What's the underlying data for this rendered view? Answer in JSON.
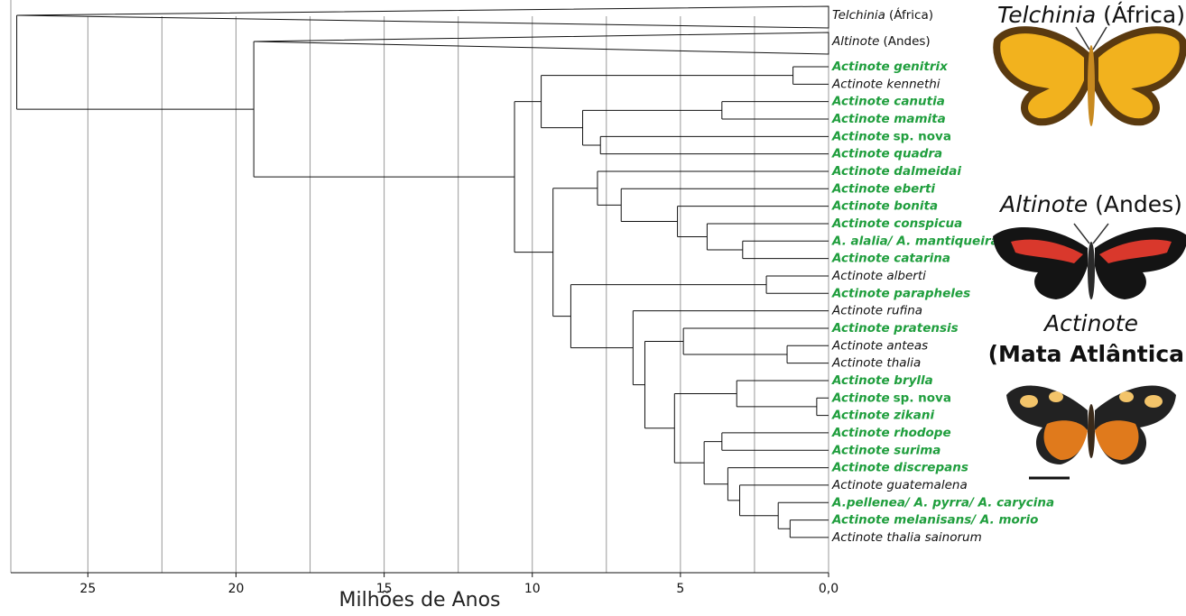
{
  "tree": {
    "axis": {
      "label": "Milhões de Anos",
      "xlim": [
        27.6,
        0
      ],
      "ticks": [
        25,
        20,
        15,
        10,
        5,
        {
          "value": 0,
          "label": "0,0"
        }
      ],
      "gridlines": [
        25,
        22.5,
        20,
        17.5,
        15,
        12.5,
        10,
        7.5,
        5,
        2.5
      ]
    },
    "root": {
      "age": 27.4,
      "children": [
        {
          "name": "Telchinia",
          "note": "(África)",
          "highlight": false,
          "collapsed": true
        },
        {
          "age": 19.4,
          "children": [
            {
              "name": "Altinote",
              "note": "(Andes)",
              "highlight": false,
              "collapsed": true
            },
            {
              "age": 10.6,
              "children": [
                {
                  "age": 9.7,
                  "children": [
                    {
                      "age": 1.2,
                      "children": [
                        {
                          "name": "Actinote genitrix",
                          "highlight": true
                        },
                        {
                          "name": "Actinote kennethi",
                          "highlight": false
                        }
                      ]
                    },
                    {
                      "age": 8.3,
                      "children": [
                        {
                          "age": 3.6,
                          "children": [
                            {
                              "name": "Actinote canutia",
                              "highlight": true
                            },
                            {
                              "name": "Actinote mamita",
                              "highlight": true
                            }
                          ]
                        },
                        {
                          "age": 7.7,
                          "children": [
                            {
                              "name": "Actinote",
                              "note": "sp. nova",
                              "highlight": true
                            },
                            {
                              "name": "Actinote quadra",
                              "highlight": true
                            }
                          ]
                        }
                      ]
                    }
                  ]
                },
                {
                  "age": 9.3,
                  "children": [
                    {
                      "age": 7.8,
                      "children": [
                        {
                          "name": "Actinote dalmeidai",
                          "highlight": true
                        },
                        {
                          "age": 7.0,
                          "children": [
                            {
                              "name": "Actinote eberti",
                              "highlight": true
                            },
                            {
                              "age": 5.1,
                              "children": [
                                {
                                  "name": "Actinote bonita",
                                  "highlight": true
                                },
                                {
                                  "age": 4.1,
                                  "children": [
                                    {
                                      "name": "Actinote conspicua",
                                      "highlight": true
                                    },
                                    {
                                      "age": 2.9,
                                      "children": [
                                        {
                                          "name": "A. alalia/ A. mantiqueira",
                                          "highlight": true
                                        },
                                        {
                                          "name": "Actinote catarina",
                                          "highlight": true
                                        }
                                      ]
                                    }
                                  ]
                                }
                              ]
                            }
                          ]
                        }
                      ]
                    },
                    {
                      "age": 8.7,
                      "children": [
                        {
                          "age": 2.1,
                          "children": [
                            {
                              "name": "Actinote alberti",
                              "highlight": false
                            },
                            {
                              "name": "Actinote parapheles",
                              "highlight": true
                            }
                          ]
                        },
                        {
                          "age": 6.6,
                          "children": [
                            {
                              "name": "Actinote rufina",
                              "highlight": false
                            },
                            {
                              "age": 6.2,
                              "children": [
                                {
                                  "age": 4.9,
                                  "children": [
                                    {
                                      "name": "Actinote pratensis",
                                      "highlight": true
                                    },
                                    {
                                      "age": 1.4,
                                      "children": [
                                        {
                                          "name": "Actinote anteas",
                                          "highlight": false
                                        },
                                        {
                                          "name": "Actinote thalia",
                                          "highlight": false
                                        }
                                      ]
                                    }
                                  ]
                                },
                                {
                                  "age": 5.2,
                                  "children": [
                                    {
                                      "age": 3.1,
                                      "children": [
                                        {
                                          "name": "Actinote brylla",
                                          "highlight": true
                                        },
                                        {
                                          "age": 0.4,
                                          "children": [
                                            {
                                              "name": "Actinote",
                                              "note": "sp. nova",
                                              "highlight": true
                                            },
                                            {
                                              "name": "Actinote zikani",
                                              "highlight": true
                                            }
                                          ]
                                        }
                                      ]
                                    },
                                    {
                                      "age": 4.2,
                                      "children": [
                                        {
                                          "age": 3.6,
                                          "children": [
                                            {
                                              "name": "Actinote rhodope",
                                              "highlight": true
                                            },
                                            {
                                              "name": "Actinote surima",
                                              "highlight": true
                                            }
                                          ]
                                        },
                                        {
                                          "age": 3.4,
                                          "children": [
                                            {
                                              "name": "Actinote discrepans",
                                              "highlight": true
                                            },
                                            {
                                              "age": 3.0,
                                              "children": [
                                                {
                                                  "name": "Actinote guatemalena",
                                                  "highlight": false
                                                },
                                                {
                                                  "age": 1.7,
                                                  "children": [
                                                    {
                                                      "name": "A.pellenea/ A. pyrra/ A. carycina",
                                                      "highlight": true
                                                    },
                                                    {
                                                      "age": 1.3,
                                                      "children": [
                                                        {
                                                          "name": "Actinote melanisans/ A. morio",
                                                          "highlight": true
                                                        },
                                                        {
                                                          "name": "Actinote thalia sainorum",
                                                          "highlight": false
                                                        }
                                                      ]
                                                    }
                                                  ]
                                                }
                                              ]
                                            }
                                          ]
                                        }
                                      ]
                                    }
                                  ]
                                }
                              ]
                            }
                          ]
                        }
                      ]
                    }
                  ]
                }
              ]
            }
          ]
        }
      ]
    }
  },
  "panels": [
    {
      "genus": "Telchinia",
      "region": "(África)"
    },
    {
      "genus": "Altinote",
      "region": "(Andes)"
    },
    {
      "genus": "Actinote",
      "region": "(Mata Atlântica)"
    }
  ]
}
